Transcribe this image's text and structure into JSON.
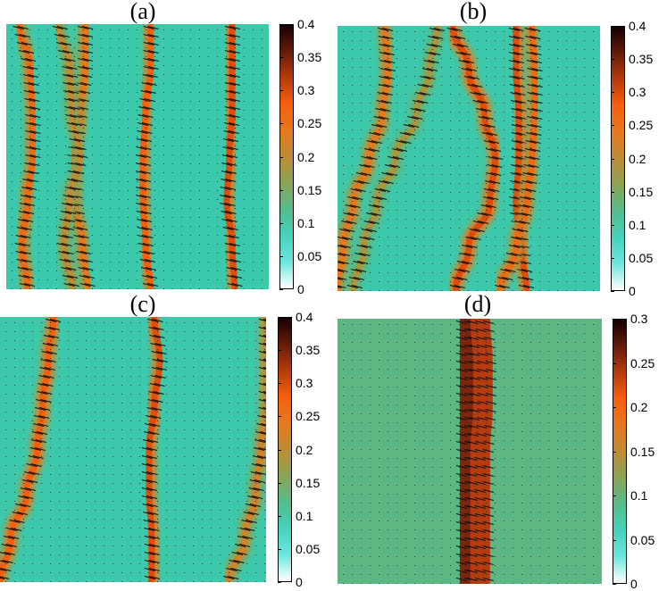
{
  "chart_data": [
    {
      "type": "heatmap",
      "title": "(a)",
      "colorbar_ticks": [
        "0",
        "0.05",
        "0.1",
        "0.15",
        "0.2",
        "0.25",
        "0.3",
        "0.35",
        "0.4"
      ],
      "colorbar_range": [
        0,
        0.4
      ],
      "background_value": 0.1,
      "ridges": [
        {
          "x": [
            0.05,
            0.09,
            0.1,
            0.1,
            0.08,
            0.06,
            0.08
          ],
          "v": 0.26
        },
        {
          "x": [
            0.3,
            0.3,
            0.28,
            0.26,
            0.26,
            0.29,
            0.31
          ],
          "v": 0.24
        },
        {
          "x": [
            0.2,
            0.24,
            0.25,
            0.28,
            0.24,
            0.22,
            0.25
          ],
          "v": 0.2
        },
        {
          "x": [
            0.55,
            0.55,
            0.53,
            0.52,
            0.52,
            0.53,
            0.55
          ],
          "v": 0.28
        },
        {
          "x": [
            0.86,
            0.86,
            0.86,
            0.85,
            0.84,
            0.86,
            0.87
          ],
          "v": 0.3
        }
      ]
    },
    {
      "type": "heatmap",
      "title": "(b)",
      "colorbar_ticks": [
        "0",
        "0.05",
        "0.1",
        "0.15",
        "0.2",
        "0.25",
        "0.3",
        "0.35",
        "0.4"
      ],
      "colorbar_range": [
        0,
        0.4
      ],
      "background_value": 0.1,
      "ridges": [
        {
          "x": [
            0.18,
            0.19,
            0.17,
            0.12,
            0.06,
            0.02,
            0.0
          ],
          "v": 0.24
        },
        {
          "x": [
            0.38,
            0.35,
            0.3,
            0.22,
            0.15,
            0.1,
            0.06
          ],
          "v": 0.18
        },
        {
          "x": [
            0.44,
            0.5,
            0.56,
            0.6,
            0.58,
            0.5,
            0.45
          ],
          "v": 0.3
        },
        {
          "x": [
            0.68,
            0.68,
            0.69,
            0.69,
            0.68,
            0.7,
            0.72
          ],
          "v": 0.3
        },
        {
          "x": [
            0.74,
            0.75,
            0.75,
            0.74,
            0.72,
            0.68,
            0.62
          ],
          "v": 0.26
        }
      ]
    },
    {
      "type": "heatmap",
      "title": "(c)",
      "colorbar_ticks": [
        "0",
        "0.05",
        "0.1",
        "0.15",
        "0.2",
        "0.25",
        "0.3",
        "0.35",
        "0.4"
      ],
      "colorbar_range": [
        0,
        0.4
      ],
      "background_value": 0.1,
      "ridges": [
        {
          "x": [
            0.2,
            0.18,
            0.16,
            0.14,
            0.1,
            0.04,
            0.0
          ],
          "v": 0.28
        },
        {
          "x": [
            0.58,
            0.6,
            0.58,
            0.56,
            0.56,
            0.57,
            0.57
          ],
          "v": 0.3
        },
        {
          "x": [
            1.0,
            1.0,
            1.0,
            0.98,
            0.96,
            0.92,
            0.86
          ],
          "v": 0.22
        }
      ]
    },
    {
      "type": "heatmap",
      "title": "(d)",
      "colorbar_ticks": [
        "0",
        "0.05",
        "0.1",
        "0.15",
        "0.2",
        "0.25",
        "0.3"
      ],
      "colorbar_range": [
        0,
        0.3
      ],
      "background_value": 0.095,
      "ridges": [
        {
          "x": [
            0.5,
            0.5,
            0.5,
            0.5,
            0.5,
            0.5,
            0.5
          ],
          "v": 0.26
        },
        {
          "x": [
            0.54,
            0.55,
            0.55,
            0.54,
            0.54,
            0.54,
            0.54
          ],
          "v": 0.24
        }
      ]
    }
  ]
}
